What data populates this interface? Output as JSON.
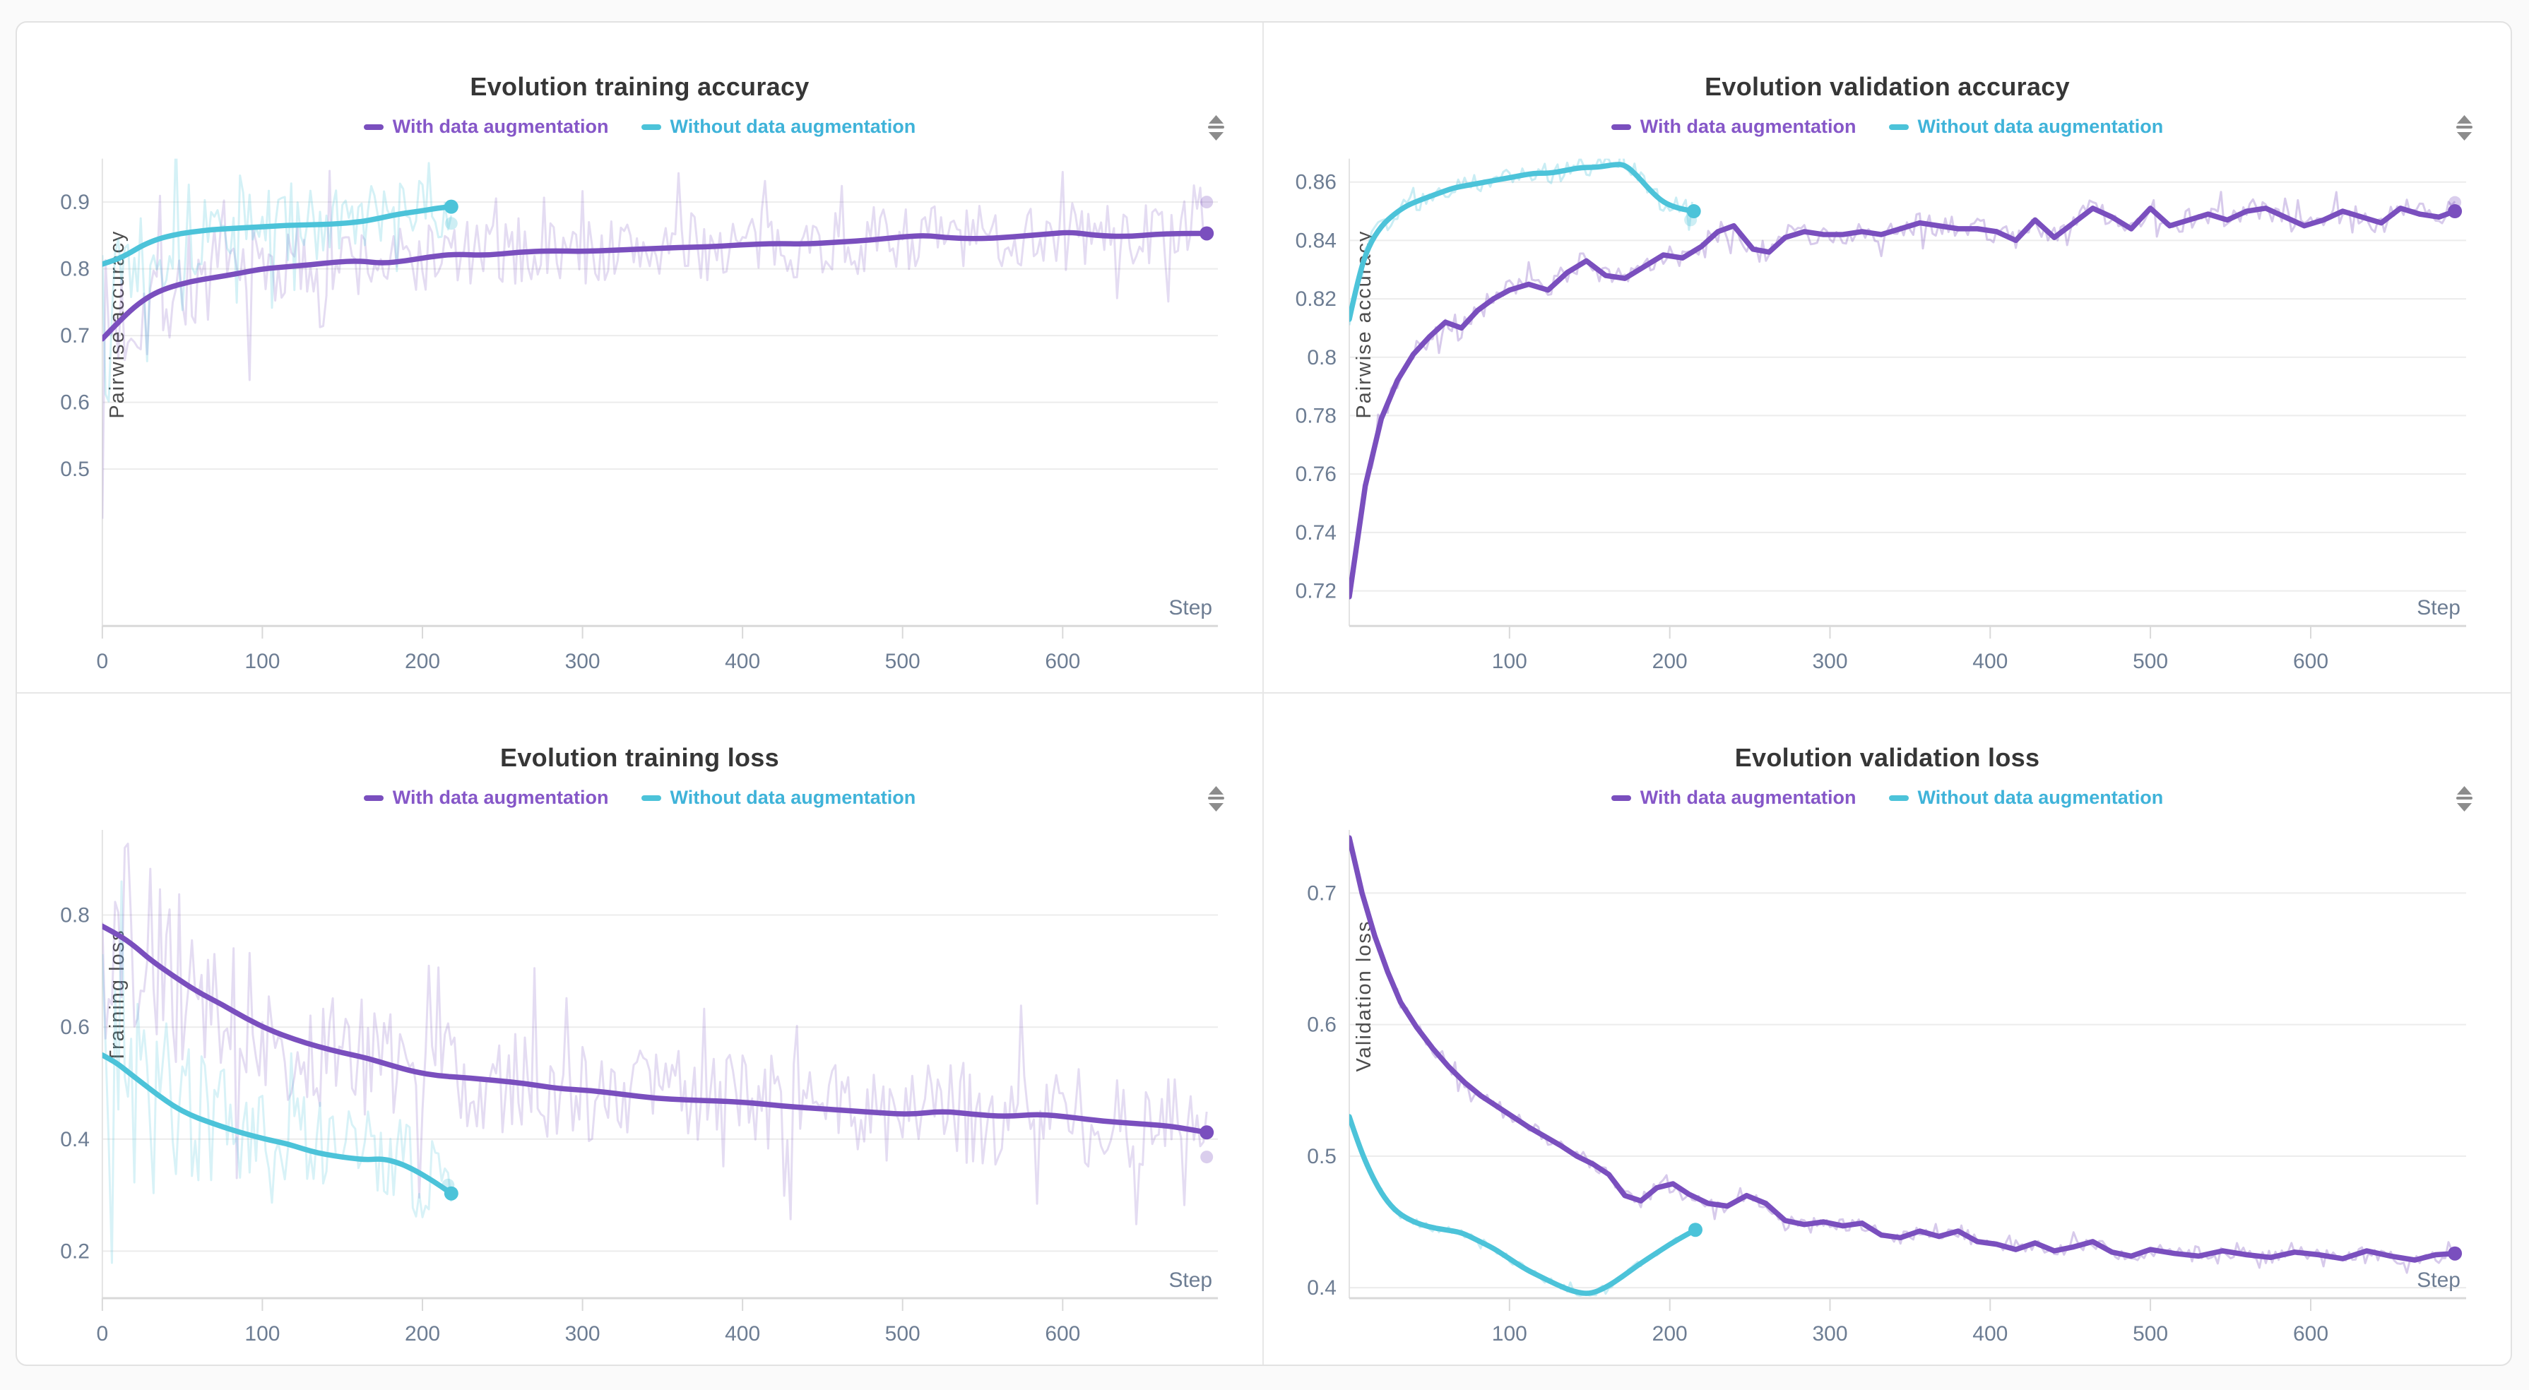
{
  "page": {
    "background": "#fafafa",
    "card_background": "#ffffff",
    "card_border": "#e2e2e2",
    "panel_divider": "#e7e7e7"
  },
  "colors": {
    "purple": "#7a4fbe",
    "cyan": "#4cc3d9",
    "purple_text": "#8657c8",
    "cyan_text": "#3fb3d9",
    "title": "#363636",
    "tick": "#6d7d93",
    "axis_label": "#4d4d4d",
    "grid": "#ececec",
    "axis": "#d9d9d9",
    "icon": "#8c8c8c"
  },
  "legend": {
    "with_label": "With data augmentation",
    "without_label": "Without data augmentation"
  },
  "icons": {
    "drag_handle": "sort-drag-handle-icon"
  },
  "chart_data": [
    {
      "type": "line",
      "title": "Evolution training accuracy",
      "ylabel": "Pairwise accuracy",
      "xlabel": "Step",
      "ylim": [
        0.265,
        0.965
      ],
      "yticks": [
        0.5,
        0.6,
        0.7,
        0.8,
        0.9
      ],
      "xlim": [
        0,
        697
      ],
      "xticks": [
        0,
        100,
        200,
        300,
        400,
        500,
        600
      ],
      "grid": "horizontal",
      "legend_position": "top",
      "series": [
        {
          "name": "With data augmentation",
          "color_key": "purple",
          "smooth": true,
          "width": 7.5,
          "end_dot": true,
          "x": [
            0,
            10,
            20,
            30,
            40,
            55,
            70,
            85,
            100,
            115,
            130,
            145,
            160,
            175,
            190,
            205,
            220,
            240,
            260,
            280,
            300,
            320,
            340,
            360,
            380,
            400,
            420,
            440,
            460,
            480,
            500,
            515,
            530,
            550,
            570,
            590,
            605,
            620,
            640,
            660,
            675,
            690
          ],
          "y": [
            0.695,
            0.72,
            0.743,
            0.76,
            0.771,
            0.781,
            0.787,
            0.793,
            0.8,
            0.803,
            0.806,
            0.81,
            0.812,
            0.808,
            0.812,
            0.818,
            0.822,
            0.82,
            0.825,
            0.827,
            0.826,
            0.828,
            0.83,
            0.832,
            0.833,
            0.836,
            0.838,
            0.837,
            0.84,
            0.843,
            0.848,
            0.85,
            0.846,
            0.845,
            0.848,
            0.852,
            0.855,
            0.85,
            0.848,
            0.852,
            0.853,
            0.853
          ],
          "raw": {
            "amp": 0.05,
            "seed": 7,
            "opacity": 0.2,
            "spike": 0.08,
            "boost": 1
          },
          "raw_end": {
            "x": 690,
            "y": 0.9
          }
        },
        {
          "name": "Without data augmentation",
          "color_key": "cyan",
          "smooth": true,
          "width": 7.5,
          "end_dot": true,
          "x": [
            0,
            8,
            16,
            25,
            35,
            45,
            55,
            70,
            85,
            100,
            115,
            130,
            145,
            160,
            172,
            185,
            200,
            210,
            218
          ],
          "y": [
            0.807,
            0.813,
            0.822,
            0.835,
            0.845,
            0.851,
            0.855,
            0.859,
            0.861,
            0.863,
            0.865,
            0.866,
            0.867,
            0.87,
            0.875,
            0.882,
            0.887,
            0.891,
            0.893
          ],
          "raw": {
            "amp": 0.042,
            "seed": 13,
            "opacity": 0.24,
            "spike": 0.12,
            "boost": 1
          },
          "raw_end": {
            "x": 218,
            "y": 0.868
          }
        }
      ]
    },
    {
      "type": "line",
      "title": "Evolution validation accuracy",
      "ylabel": "Pairwise accuracy",
      "xlabel": "Step",
      "ylim": [
        0.708,
        0.868
      ],
      "yticks": [
        0.72,
        0.74,
        0.76,
        0.78,
        0.8,
        0.82,
        0.84,
        0.86
      ],
      "xlim": [
        0,
        697
      ],
      "xticks": [
        100,
        200,
        300,
        400,
        500,
        600
      ],
      "grid": "horizontal",
      "legend_position": "top",
      "series": [
        {
          "name": "With data augmentation",
          "color_key": "purple",
          "smooth": false,
          "width": 7.5,
          "end_dot": true,
          "x": [
            0,
            10,
            20,
            30,
            40,
            50,
            60,
            70,
            80,
            90,
            100,
            112,
            124,
            136,
            148,
            160,
            172,
            184,
            196,
            208,
            220,
            230,
            240,
            252,
            262,
            272,
            284,
            296,
            308,
            320,
            332,
            344,
            356,
            368,
            380,
            392,
            404,
            416,
            428,
            440,
            452,
            464,
            476,
            488,
            500,
            512,
            524,
            536,
            548,
            560,
            572,
            584,
            596,
            608,
            620,
            632,
            644,
            656,
            668,
            680,
            690
          ],
          "y": [
            0.718,
            0.756,
            0.779,
            0.792,
            0.801,
            0.807,
            0.812,
            0.81,
            0.816,
            0.82,
            0.823,
            0.825,
            0.823,
            0.829,
            0.833,
            0.828,
            0.827,
            0.831,
            0.835,
            0.834,
            0.838,
            0.843,
            0.845,
            0.837,
            0.836,
            0.841,
            0.843,
            0.842,
            0.842,
            0.843,
            0.842,
            0.844,
            0.846,
            0.845,
            0.844,
            0.844,
            0.843,
            0.84,
            0.847,
            0.841,
            0.846,
            0.851,
            0.848,
            0.844,
            0.851,
            0.845,
            0.847,
            0.849,
            0.847,
            0.85,
            0.851,
            0.848,
            0.845,
            0.847,
            0.85,
            0.848,
            0.846,
            0.851,
            0.849,
            0.848,
            0.85
          ],
          "raw": {
            "amp": 0.004,
            "seed": 21,
            "opacity": 0.3,
            "spike": 0.12,
            "boost": 0
          },
          "raw_end": {
            "x": 690,
            "y": 0.853
          }
        },
        {
          "name": "Without data augmentation",
          "color_key": "cyan",
          "smooth": true,
          "width": 7.5,
          "end_dot": true,
          "x": [
            0,
            6,
            12,
            20,
            28,
            36,
            45,
            55,
            65,
            75,
            85,
            95,
            105,
            115,
            125,
            135,
            145,
            155,
            165,
            172,
            180,
            188,
            196,
            205,
            215
          ],
          "y": [
            0.813,
            0.828,
            0.838,
            0.845,
            0.849,
            0.852,
            0.854,
            0.856,
            0.858,
            0.859,
            0.86,
            0.861,
            0.862,
            0.863,
            0.863,
            0.864,
            0.865,
            0.865,
            0.866,
            0.866,
            0.862,
            0.857,
            0.853,
            0.851,
            0.85
          ],
          "raw": {
            "amp": 0.0035,
            "seed": 29,
            "opacity": 0.3,
            "spike": 0.1,
            "boost": 0
          },
          "raw_end": {
            "x": 213,
            "y": 0.847
          }
        }
      ]
    },
    {
      "type": "line",
      "title": "Evolution training loss",
      "ylabel": "Training loss",
      "xlabel": "Step",
      "ylim": [
        0.116,
        0.952
      ],
      "yticks": [
        0.2,
        0.4,
        0.6,
        0.8
      ],
      "xlim": [
        0,
        697
      ],
      "xticks": [
        0,
        100,
        200,
        300,
        400,
        500,
        600
      ],
      "grid": "horizontal",
      "legend_position": "top",
      "series": [
        {
          "name": "With data augmentation",
          "color_key": "purple",
          "smooth": true,
          "width": 7.5,
          "end_dot": true,
          "x": [
            0,
            10,
            20,
            30,
            45,
            60,
            75,
            90,
            105,
            120,
            135,
            150,
            165,
            180,
            195,
            210,
            225,
            245,
            265,
            285,
            305,
            325,
            345,
            365,
            385,
            405,
            425,
            445,
            465,
            485,
            505,
            525,
            545,
            565,
            585,
            605,
            625,
            645,
            665,
            680,
            690
          ],
          "y": [
            0.78,
            0.765,
            0.745,
            0.72,
            0.69,
            0.662,
            0.64,
            0.615,
            0.594,
            0.578,
            0.565,
            0.554,
            0.545,
            0.532,
            0.52,
            0.513,
            0.51,
            0.505,
            0.499,
            0.49,
            0.487,
            0.48,
            0.473,
            0.47,
            0.468,
            0.465,
            0.459,
            0.455,
            0.451,
            0.447,
            0.444,
            0.45,
            0.444,
            0.44,
            0.445,
            0.439,
            0.432,
            0.428,
            0.424,
            0.417,
            0.412
          ],
          "raw": {
            "amp": 0.088,
            "seed": 37,
            "opacity": 0.2,
            "spike": 0.08,
            "boost": 1
          },
          "raw_end": {
            "x": 690,
            "y": 0.368
          }
        },
        {
          "name": "Without data augmentation",
          "color_key": "cyan",
          "smooth": true,
          "width": 7.5,
          "end_dot": true,
          "x": [
            0,
            8,
            16,
            25,
            35,
            45,
            55,
            65,
            75,
            85,
            95,
            105,
            115,
            125,
            135,
            145,
            155,
            165,
            175,
            185,
            195,
            205,
            212,
            218
          ],
          "y": [
            0.55,
            0.538,
            0.52,
            0.5,
            0.478,
            0.458,
            0.443,
            0.432,
            0.422,
            0.413,
            0.405,
            0.398,
            0.392,
            0.383,
            0.375,
            0.37,
            0.366,
            0.363,
            0.365,
            0.358,
            0.345,
            0.328,
            0.315,
            0.303
          ],
          "raw": {
            "amp": 0.075,
            "seed": 43,
            "opacity": 0.22,
            "spike": 0.08,
            "boost": 1
          },
          "raw_end": {
            "x": 216,
            "y": 0.318
          }
        }
      ]
    },
    {
      "type": "line",
      "title": "Evolution validation loss",
      "ylabel": "Validation loss",
      "xlabel": "Step",
      "ylim": [
        0.392,
        0.748
      ],
      "yticks": [
        0.4,
        0.5,
        0.6,
        0.7
      ],
      "xlim": [
        0,
        697
      ],
      "xticks": [
        100,
        200,
        300,
        400,
        500,
        600
      ],
      "grid": "horizontal",
      "legend_position": "top",
      "series": [
        {
          "name": "With data augmentation",
          "color_key": "purple",
          "smooth": false,
          "width": 7.5,
          "end_dot": true,
          "x": [
            0,
            8,
            16,
            24,
            32,
            42,
            52,
            62,
            72,
            82,
            92,
            102,
            112,
            122,
            132,
            142,
            152,
            162,
            172,
            182,
            192,
            202,
            212,
            224,
            236,
            248,
            260,
            272,
            284,
            296,
            308,
            320,
            332,
            344,
            356,
            368,
            380,
            392,
            404,
            416,
            428,
            440,
            452,
            464,
            476,
            488,
            500,
            515,
            530,
            545,
            560,
            575,
            590,
            605,
            620,
            635,
            650,
            665,
            678,
            690
          ],
          "y": [
            0.742,
            0.7,
            0.667,
            0.64,
            0.617,
            0.598,
            0.582,
            0.568,
            0.556,
            0.546,
            0.538,
            0.53,
            0.522,
            0.515,
            0.508,
            0.5,
            0.494,
            0.486,
            0.47,
            0.466,
            0.476,
            0.479,
            0.471,
            0.464,
            0.462,
            0.47,
            0.464,
            0.451,
            0.448,
            0.45,
            0.447,
            0.449,
            0.44,
            0.438,
            0.443,
            0.439,
            0.443,
            0.435,
            0.433,
            0.429,
            0.434,
            0.428,
            0.431,
            0.435,
            0.427,
            0.424,
            0.429,
            0.426,
            0.424,
            0.428,
            0.425,
            0.423,
            0.427,
            0.425,
            0.422,
            0.428,
            0.424,
            0.421,
            0.425,
            0.426
          ],
          "raw": {
            "amp": 0.005,
            "seed": 51,
            "opacity": 0.3,
            "spike": 0.12,
            "boost": 0
          }
        },
        {
          "name": "Without data augmentation",
          "color_key": "cyan",
          "smooth": true,
          "width": 7.5,
          "end_dot": true,
          "x": [
            0,
            6,
            14,
            22,
            30,
            40,
            50,
            60,
            70,
            80,
            90,
            100,
            110,
            120,
            130,
            140,
            150,
            160,
            170,
            180,
            190,
            200,
            210,
            216
          ],
          "y": [
            0.53,
            0.508,
            0.485,
            0.468,
            0.457,
            0.45,
            0.446,
            0.444,
            0.442,
            0.436,
            0.43,
            0.422,
            0.414,
            0.408,
            0.402,
            0.397,
            0.395,
            0.4,
            0.408,
            0.417,
            0.425,
            0.433,
            0.44,
            0.444
          ],
          "raw": {
            "amp": 0.003,
            "seed": 57,
            "opacity": 0.3,
            "spike": 0.1,
            "boost": 0
          }
        }
      ]
    }
  ]
}
